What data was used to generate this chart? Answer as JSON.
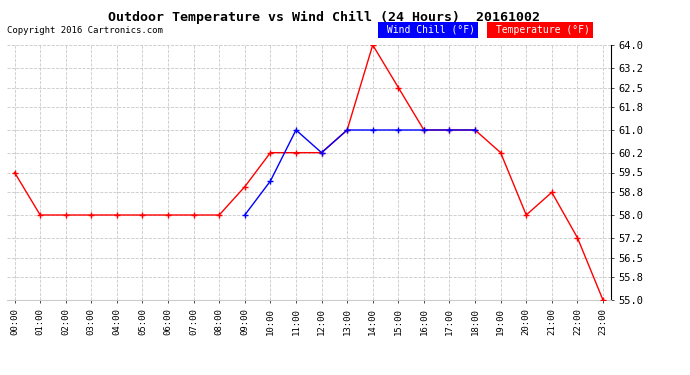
{
  "title": "Outdoor Temperature vs Wind Chill (24 Hours)  20161002",
  "copyright": "Copyright 2016 Cartronics.com",
  "hours": [
    "00:00",
    "01:00",
    "02:00",
    "03:00",
    "04:00",
    "05:00",
    "06:00",
    "07:00",
    "08:00",
    "09:00",
    "10:00",
    "11:00",
    "12:00",
    "13:00",
    "14:00",
    "15:00",
    "16:00",
    "17:00",
    "18:00",
    "19:00",
    "20:00",
    "21:00",
    "22:00",
    "23:00"
  ],
  "temperature": [
    59.5,
    58.0,
    58.0,
    58.0,
    58.0,
    58.0,
    58.0,
    58.0,
    58.0,
    59.0,
    60.2,
    60.2,
    60.2,
    61.0,
    64.0,
    62.5,
    61.0,
    61.0,
    61.0,
    60.2,
    58.0,
    58.8,
    57.2,
    55.0
  ],
  "wind_chill": [
    null,
    null,
    null,
    null,
    null,
    null,
    null,
    null,
    null,
    58.0,
    59.2,
    61.0,
    60.2,
    61.0,
    61.0,
    61.0,
    61.0,
    61.0,
    61.0,
    null,
    null,
    null,
    null,
    null
  ],
  "ylim_min": 55.0,
  "ylim_max": 64.0,
  "yticks": [
    55.0,
    55.8,
    56.5,
    57.2,
    58.0,
    58.8,
    59.5,
    60.2,
    61.0,
    61.8,
    62.5,
    63.2,
    64.0
  ],
  "temp_color": "#ff0000",
  "wind_color": "#0000ff",
  "bg_color": "#ffffff",
  "grid_color": "#bbbbbb"
}
